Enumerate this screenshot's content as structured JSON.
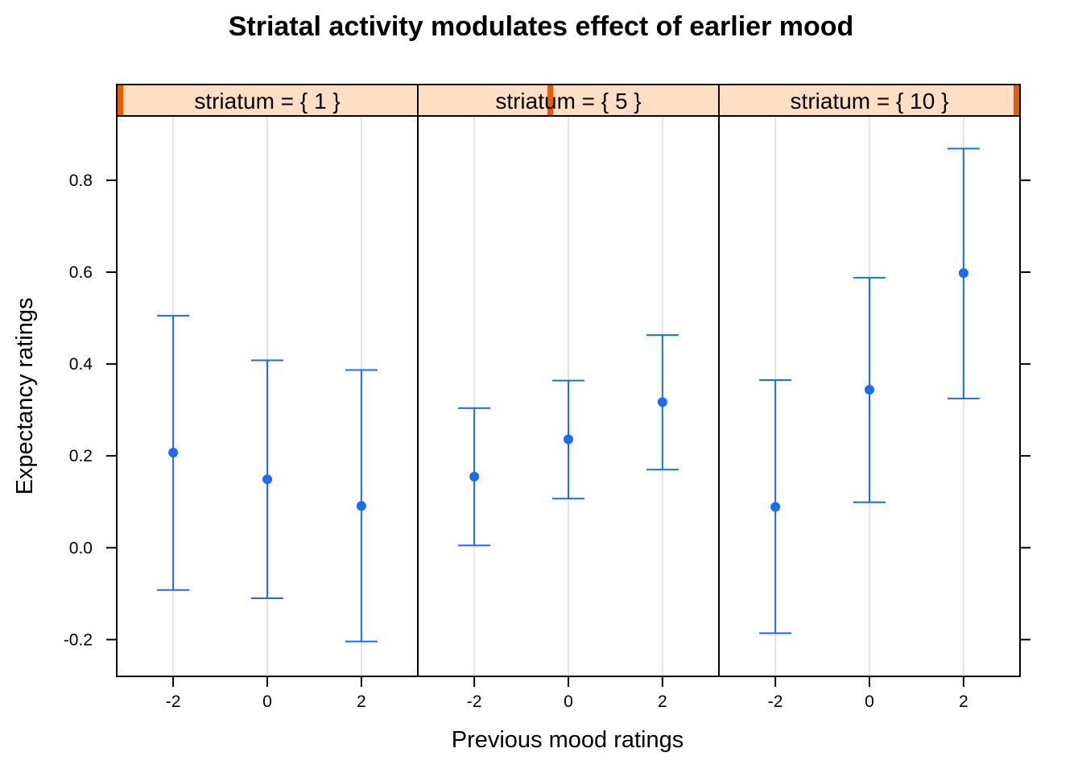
{
  "chart_data": {
    "type": "scatter",
    "title": "Striatal activity modulates effect of earlier mood",
    "xlabel": "Previous mood ratings",
    "ylabel": "Expectancy ratings",
    "x_ticks": [
      "-2",
      "0",
      "2"
    ],
    "y_ticks": [
      "-0.2",
      "0.0",
      "0.2",
      "0.4",
      "0.6",
      "0.8"
    ],
    "y_tick_values": [
      -0.2,
      0.0,
      0.2,
      0.4,
      0.6,
      0.8
    ],
    "xlim": [
      -3.2,
      3.2
    ],
    "ylim": [
      -0.28,
      0.94
    ],
    "grid": "vertical",
    "colors": {
      "points": "#1a6cf0",
      "strip": "#ffdec4",
      "strip_indicator": "#e85d00",
      "grid": "#e3e3e3"
    },
    "panels": [
      {
        "strip_label": "striatum = { 1 }",
        "indicator_fraction": 0.0,
        "x": [
          -2,
          0,
          2
        ],
        "y": [
          0.207,
          0.149,
          0.091
        ],
        "lower": [
          -0.092,
          -0.11,
          -0.204
        ],
        "upper": [
          0.505,
          0.408,
          0.387
        ]
      },
      {
        "strip_label": "striatum = { 5 }",
        "indicator_fraction": 0.44,
        "x": [
          -2,
          0,
          2
        ],
        "y": [
          0.155,
          0.236,
          0.317
        ],
        "lower": [
          0.005,
          0.107,
          0.17
        ],
        "upper": [
          0.304,
          0.364,
          0.463
        ]
      },
      {
        "strip_label": "striatum = { 10 }",
        "indicator_fraction": 1.0,
        "x": [
          -2,
          0,
          2
        ],
        "y": [
          0.089,
          0.344,
          0.598
        ],
        "lower": [
          -0.186,
          0.099,
          0.325
        ],
        "upper": [
          0.365,
          0.588,
          0.869
        ]
      }
    ]
  }
}
